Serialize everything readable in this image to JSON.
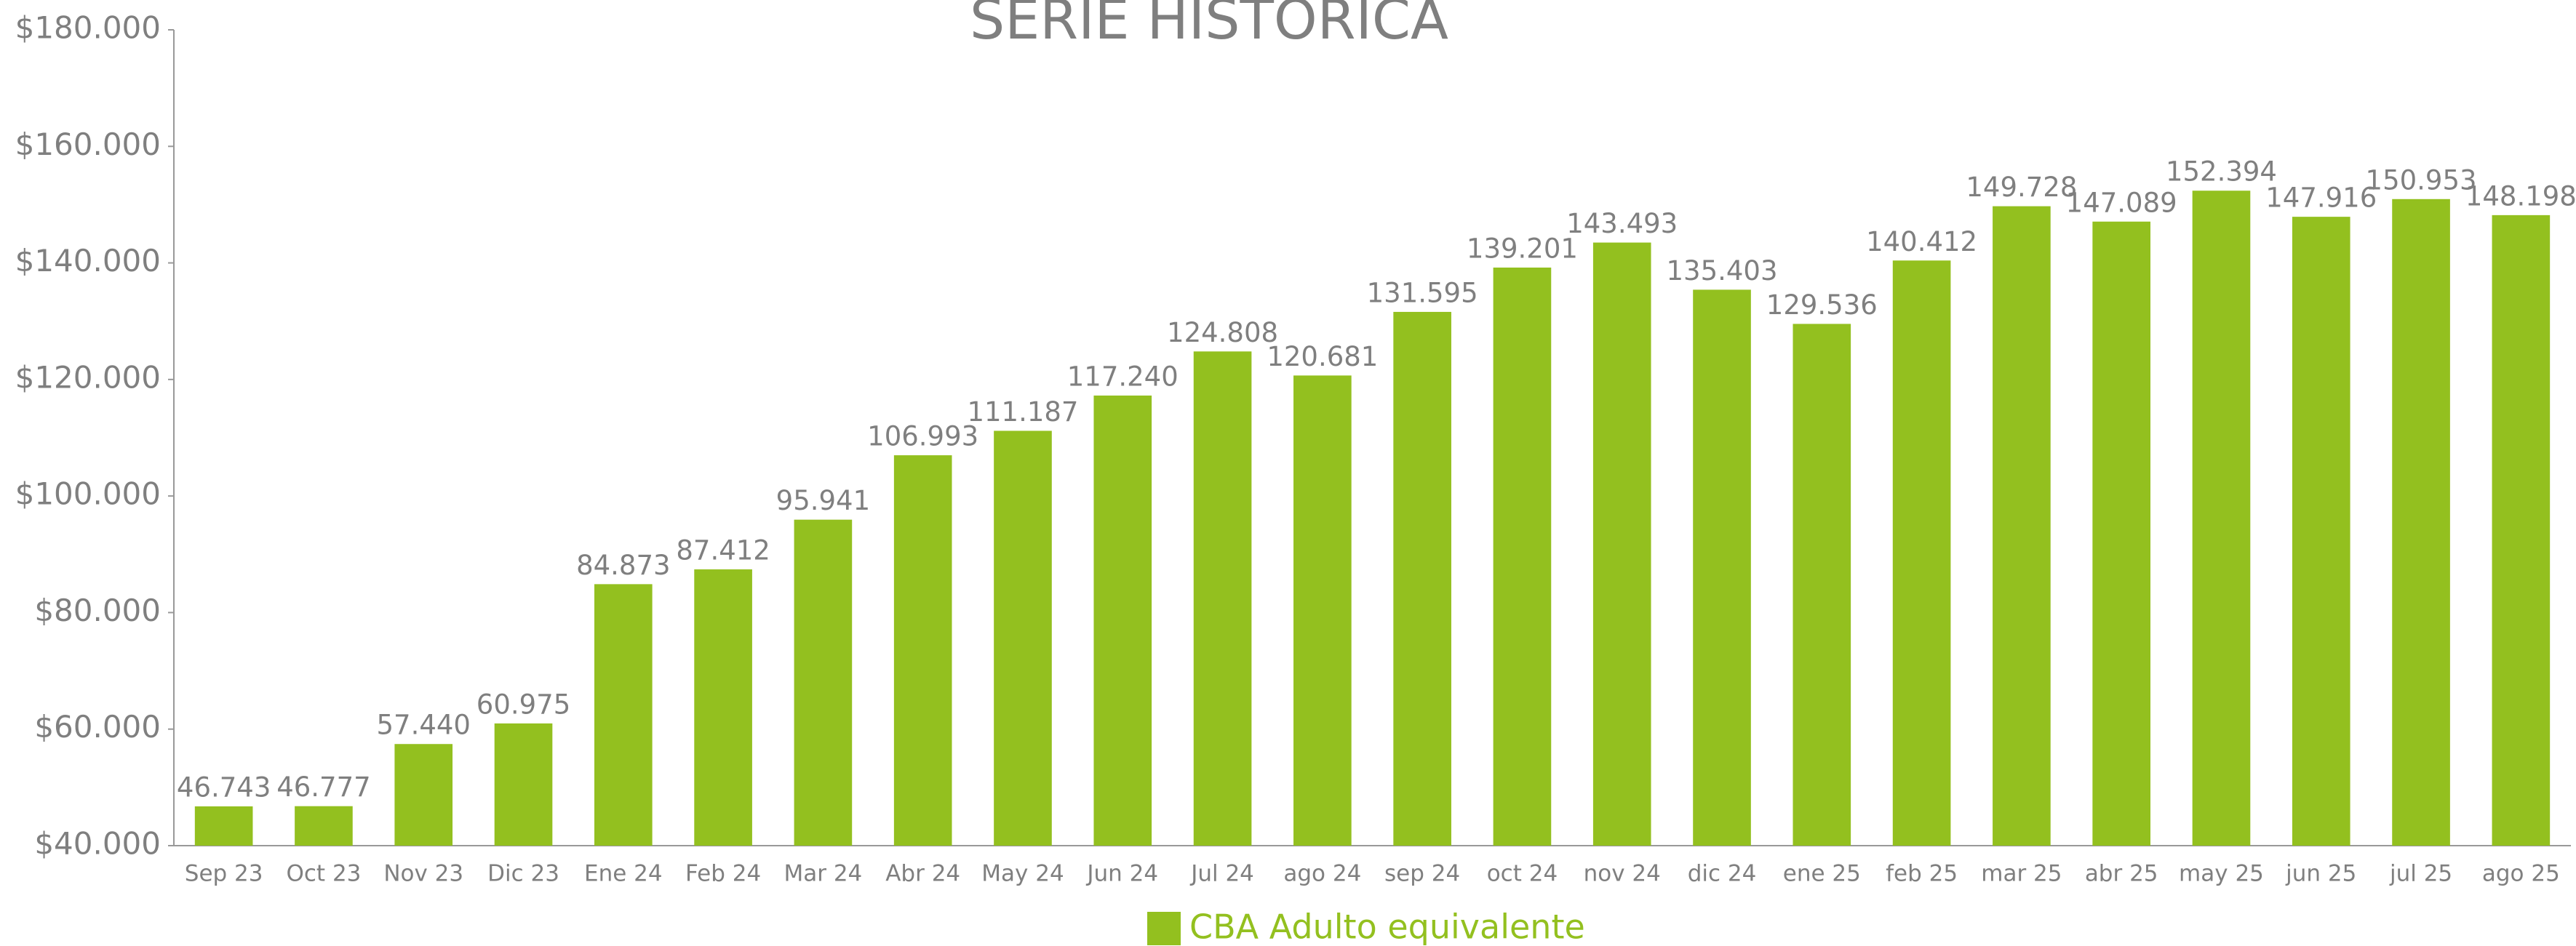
{
  "chart_data": {
    "type": "bar",
    "title": "SERIE HISTORICA",
    "categories": [
      "Sep 23",
      "Oct 23",
      "Nov 23",
      "Dic 23",
      "Ene 24",
      "Feb 24",
      "Mar 24",
      "Abr 24",
      "May 24",
      "Jun 24",
      "Jul 24",
      "ago 24",
      "sep 24",
      "oct 24",
      "nov 24",
      "dic 24",
      "ene 25",
      "feb 25",
      "mar 25",
      "abr 25",
      "may 25",
      "jun 25",
      "jul 25",
      "ago 25"
    ],
    "series": [
      {
        "name": "CBA Adulto equivalente",
        "color": "#93c01f",
        "values": [
          46743,
          46777,
          57440,
          60975,
          84873,
          87412,
          95941,
          106993,
          111187,
          117240,
          124808,
          120681,
          131595,
          139201,
          143493,
          135403,
          129536,
          140412,
          149728,
          147089,
          152394,
          147916,
          150953,
          148198
        ],
        "value_labels": [
          "46.743",
          "46.777",
          "57.440",
          "60.975",
          "84.873",
          "87.412",
          "95.941",
          "106.993",
          "111.187",
          "117.240",
          "124.808",
          "120.681",
          "131.595",
          "139.201",
          "143.493",
          "135.403",
          "129.536",
          "140.412",
          "149.728",
          "147.089",
          "152.394",
          "147.916",
          "150.953",
          "148.198"
        ]
      }
    ],
    "ylim": [
      40000,
      180000
    ],
    "yticks": [
      {
        "value": 40000,
        "label": "$40.000"
      },
      {
        "value": 60000,
        "label": "$60.000"
      },
      {
        "value": 80000,
        "label": "$80.000"
      },
      {
        "value": 100000,
        "label": "$100.000"
      },
      {
        "value": 120000,
        "label": "$120.000"
      },
      {
        "value": 140000,
        "label": "$140.000"
      },
      {
        "value": 160000,
        "label": "$160.000"
      },
      {
        "value": 180000,
        "label": "$180.000"
      }
    ],
    "grid": false,
    "legend": "bottom"
  }
}
